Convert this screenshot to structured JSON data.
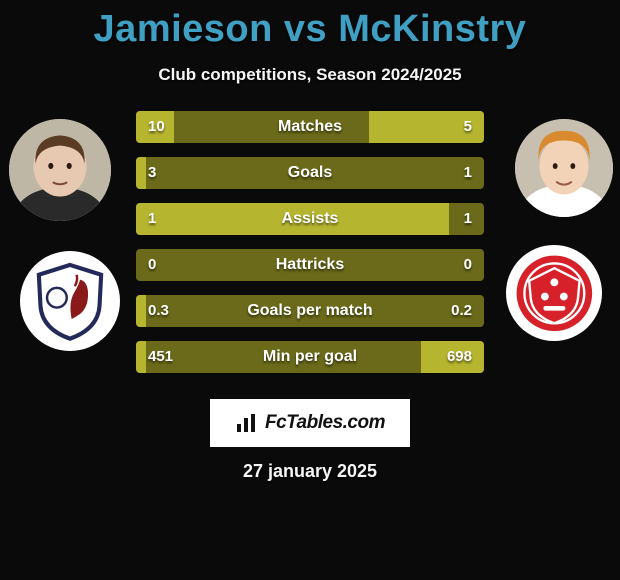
{
  "title": "Jamieson vs McKinstry",
  "title_color": "#3fa0c4",
  "subtitle": "Club competitions, Season 2024/2025",
  "date": "27 january 2025",
  "logo_text": "FcTables.com",
  "bar_bg_color": "#6a6a1a",
  "bar_fill_color": "#b6b52f",
  "text_color": "#ffffff",
  "stats": [
    {
      "label": "Matches",
      "left_val": "10",
      "right_val": "5",
      "left_pct": 11,
      "right_pct": 33
    },
    {
      "label": "Goals",
      "left_val": "3",
      "right_val": "1",
      "left_pct": 3,
      "right_pct": 0
    },
    {
      "label": "Assists",
      "left_val": "1",
      "right_val": "1",
      "left_pct": 90,
      "right_pct": 0
    },
    {
      "label": "Hattricks",
      "left_val": "0",
      "right_val": "0",
      "left_pct": 0,
      "right_pct": 0
    },
    {
      "label": "Goals per match",
      "left_val": "0.3",
      "right_val": "0.2",
      "left_pct": 3,
      "right_pct": 0
    },
    {
      "label": "Min per goal",
      "left_val": "451",
      "right_val": "698",
      "left_pct": 3,
      "right_pct": 18
    }
  ],
  "player_left": {
    "skin": "#e7c8b0",
    "hair": "#5a3b24",
    "shirt": "#2a2a2a",
    "bg": "#bfb7a6"
  },
  "player_right": {
    "skin": "#f2d3b8",
    "hair": "#d98a2e",
    "shirt": "#ffffff",
    "bg": "#c7bfaf"
  },
  "club_left": {
    "shield_fill": "#ffffff",
    "shield_border": "#232a5a",
    "accent": "#8a1a1a"
  },
  "club_right": {
    "main": "#d6202a",
    "ring": "#ffffff"
  }
}
